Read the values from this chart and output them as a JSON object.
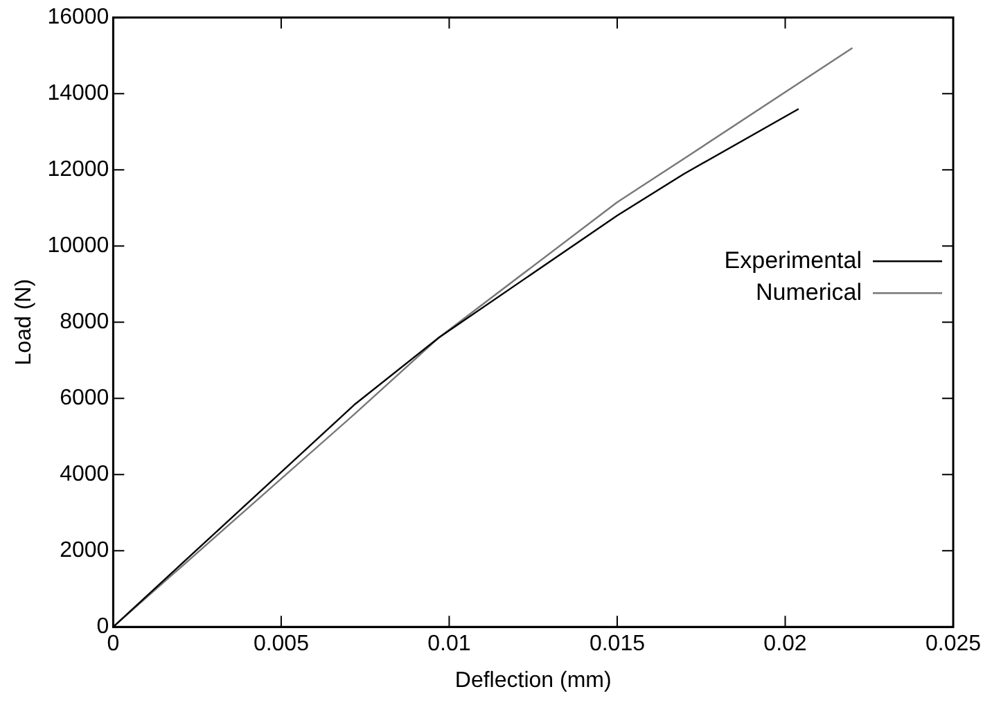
{
  "chart_data": {
    "type": "line",
    "xlabel": "Deflection (mm)",
    "ylabel": "Load (N)",
    "xlim": [
      0,
      0.025
    ],
    "xticks": [
      0,
      0.005,
      0.01,
      0.015,
      0.02,
      0.025
    ],
    "ylim": [
      0,
      16000
    ],
    "yticks": [
      0,
      2000,
      4000,
      6000,
      8000,
      10000,
      12000,
      14000,
      16000
    ],
    "grid": false,
    "legend": "right",
    "marker": "none",
    "series": [
      {
        "name": "Experimental",
        "color": "#000000",
        "x": [
          0,
          0.0072,
          0.0097,
          0.015,
          0.017,
          0.0204
        ],
        "values": [
          0,
          5850,
          7600,
          10800,
          11900,
          13600
        ]
      },
      {
        "name": "Numerical",
        "color": "#777777",
        "x": [
          0,
          0.0072,
          0.0097,
          0.015,
          0.017,
          0.022
        ],
        "values": [
          0,
          5600,
          7600,
          11150,
          12300,
          15200
        ]
      }
    ]
  }
}
